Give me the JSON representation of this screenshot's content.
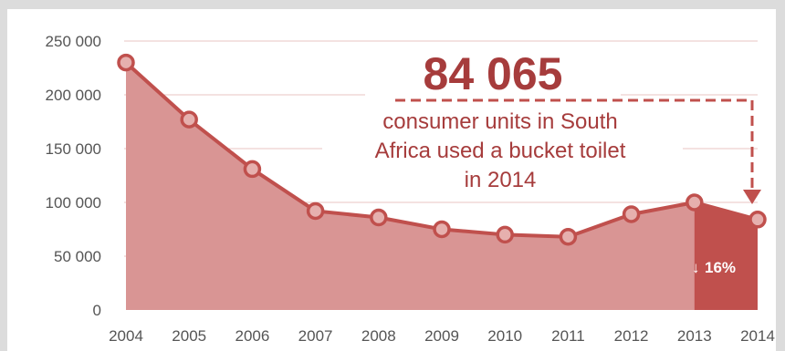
{
  "colors": {
    "area_fill": "#d99594",
    "line": "#c0504d",
    "point_fill": "#e6b0ae",
    "highlight": "#c0504d",
    "accent_text": "#a63c3c",
    "gridline": "#e8c4c3"
  },
  "annotation": {
    "value": "84 065",
    "line1": "consumer units in South",
    "line2": "Africa used a bucket toilet",
    "line3": "in 2014",
    "arrow_icon": "dashed-arrow-down-icon"
  },
  "badge": {
    "icon": "arrow-down-icon",
    "arrow": "↓",
    "text": "16%"
  },
  "chart_data": {
    "type": "area",
    "x": [
      2004,
      2005,
      2006,
      2007,
      2008,
      2009,
      2010,
      2011,
      2012,
      2013,
      2014
    ],
    "y_tick_labels": [
      "0",
      "50 000",
      "100 000",
      "150 000",
      "200 000",
      "250 000"
    ],
    "ylim": [
      0,
      250000
    ],
    "grid": true,
    "series": [
      {
        "values": [
          230000,
          177000,
          131000,
          92000,
          86000,
          75000,
          70000,
          68000,
          89000,
          100000,
          84065
        ]
      }
    ],
    "highlight_segment": {
      "from": 2013,
      "to": 2014,
      "change_percent": -16
    }
  }
}
